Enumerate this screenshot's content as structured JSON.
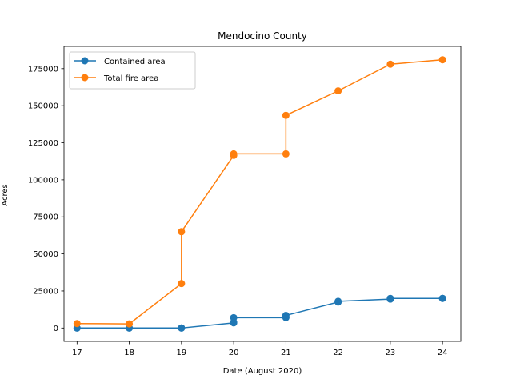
{
  "chart_data": {
    "type": "line",
    "title": "Mendocino County",
    "xlabel": "Date (August 2020)",
    "ylabel": "Acres",
    "xlim": [
      16.75,
      24.35
    ],
    "ylim": [
      -9000,
      190000
    ],
    "xticks": [
      17,
      18,
      19,
      20,
      21,
      22,
      23,
      24
    ],
    "xtick_labels": [
      "17",
      "18",
      "19",
      "20",
      "21",
      "22",
      "23",
      "24"
    ],
    "yticks": [
      0,
      25000,
      50000,
      75000,
      100000,
      125000,
      150000,
      175000
    ],
    "ytick_labels": [
      "0",
      "25000",
      "50000",
      "75000",
      "100000",
      "125000",
      "150000",
      "175000"
    ],
    "grid": false,
    "legend_position": "top-left",
    "series": [
      {
        "name": "Contained area",
        "color": "#1f77b4",
        "marker": "circle",
        "x": [
          17,
          17,
          18,
          18,
          19,
          19,
          20,
          20,
          20,
          21,
          21,
          21,
          22,
          22,
          23,
          23,
          24,
          24
        ],
        "y": [
          0,
          0,
          0,
          0,
          0,
          0,
          3500,
          4000,
          7000,
          7000,
          7500,
          8500,
          17500,
          18000,
          19500,
          20000,
          20000,
          20000
        ]
      },
      {
        "name": "Total fire area",
        "color": "#ff7f0e",
        "marker": "circle",
        "x": [
          17,
          18,
          19,
          19,
          20,
          20,
          21,
          21,
          22,
          23,
          24
        ],
        "y": [
          3000,
          2800,
          30000,
          65000,
          116500,
          117500,
          117500,
          143500,
          160000,
          178000,
          181000
        ]
      }
    ]
  }
}
